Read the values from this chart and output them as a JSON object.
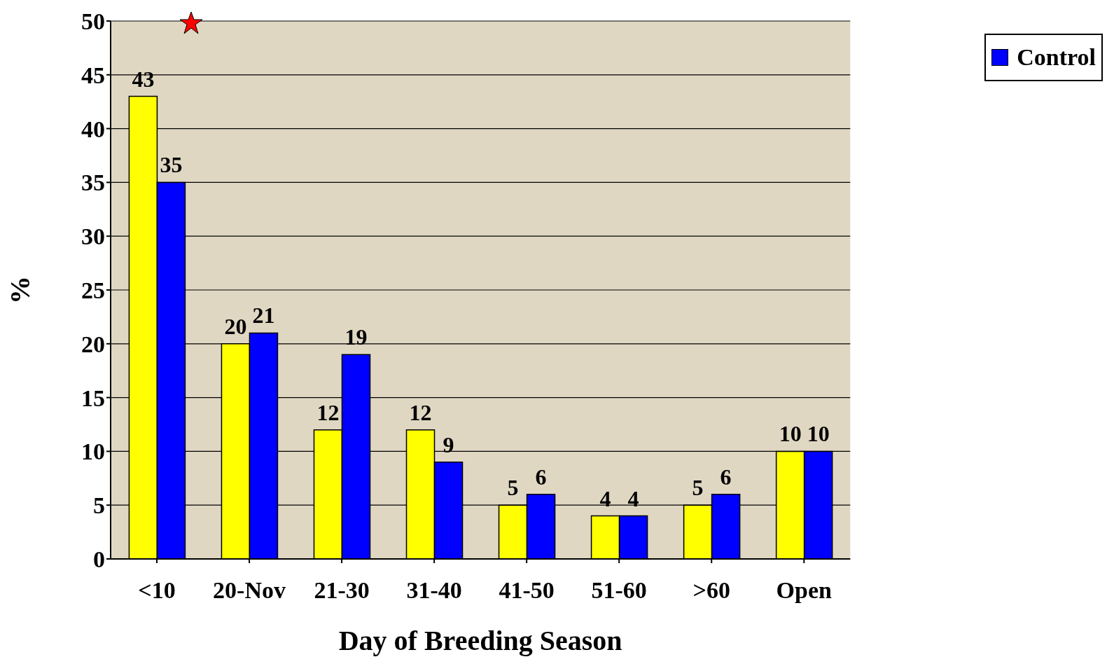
{
  "chart_data": {
    "type": "bar",
    "xlabel": "Day of Breeding Season",
    "ylabel": "%",
    "categories": [
      "<10",
      "20-Nov",
      "21-30",
      "31-40",
      "41-50",
      "51-60",
      ">60",
      "Open"
    ],
    "series": [
      {
        "color": "#ffff00",
        "values": [
          43,
          20,
          12,
          12,
          5,
          4,
          5,
          10
        ]
      },
      {
        "name": "Control",
        "color": "#0000ff",
        "values": [
          35,
          21,
          19,
          9,
          6,
          4,
          6,
          10
        ]
      }
    ],
    "ylim": [
      0,
      50
    ],
    "yticks": [
      0,
      5,
      10,
      15,
      20,
      25,
      30,
      35,
      40,
      45,
      50
    ],
    "grid": "y",
    "legend": "top right",
    "data_labels": true
  }
}
